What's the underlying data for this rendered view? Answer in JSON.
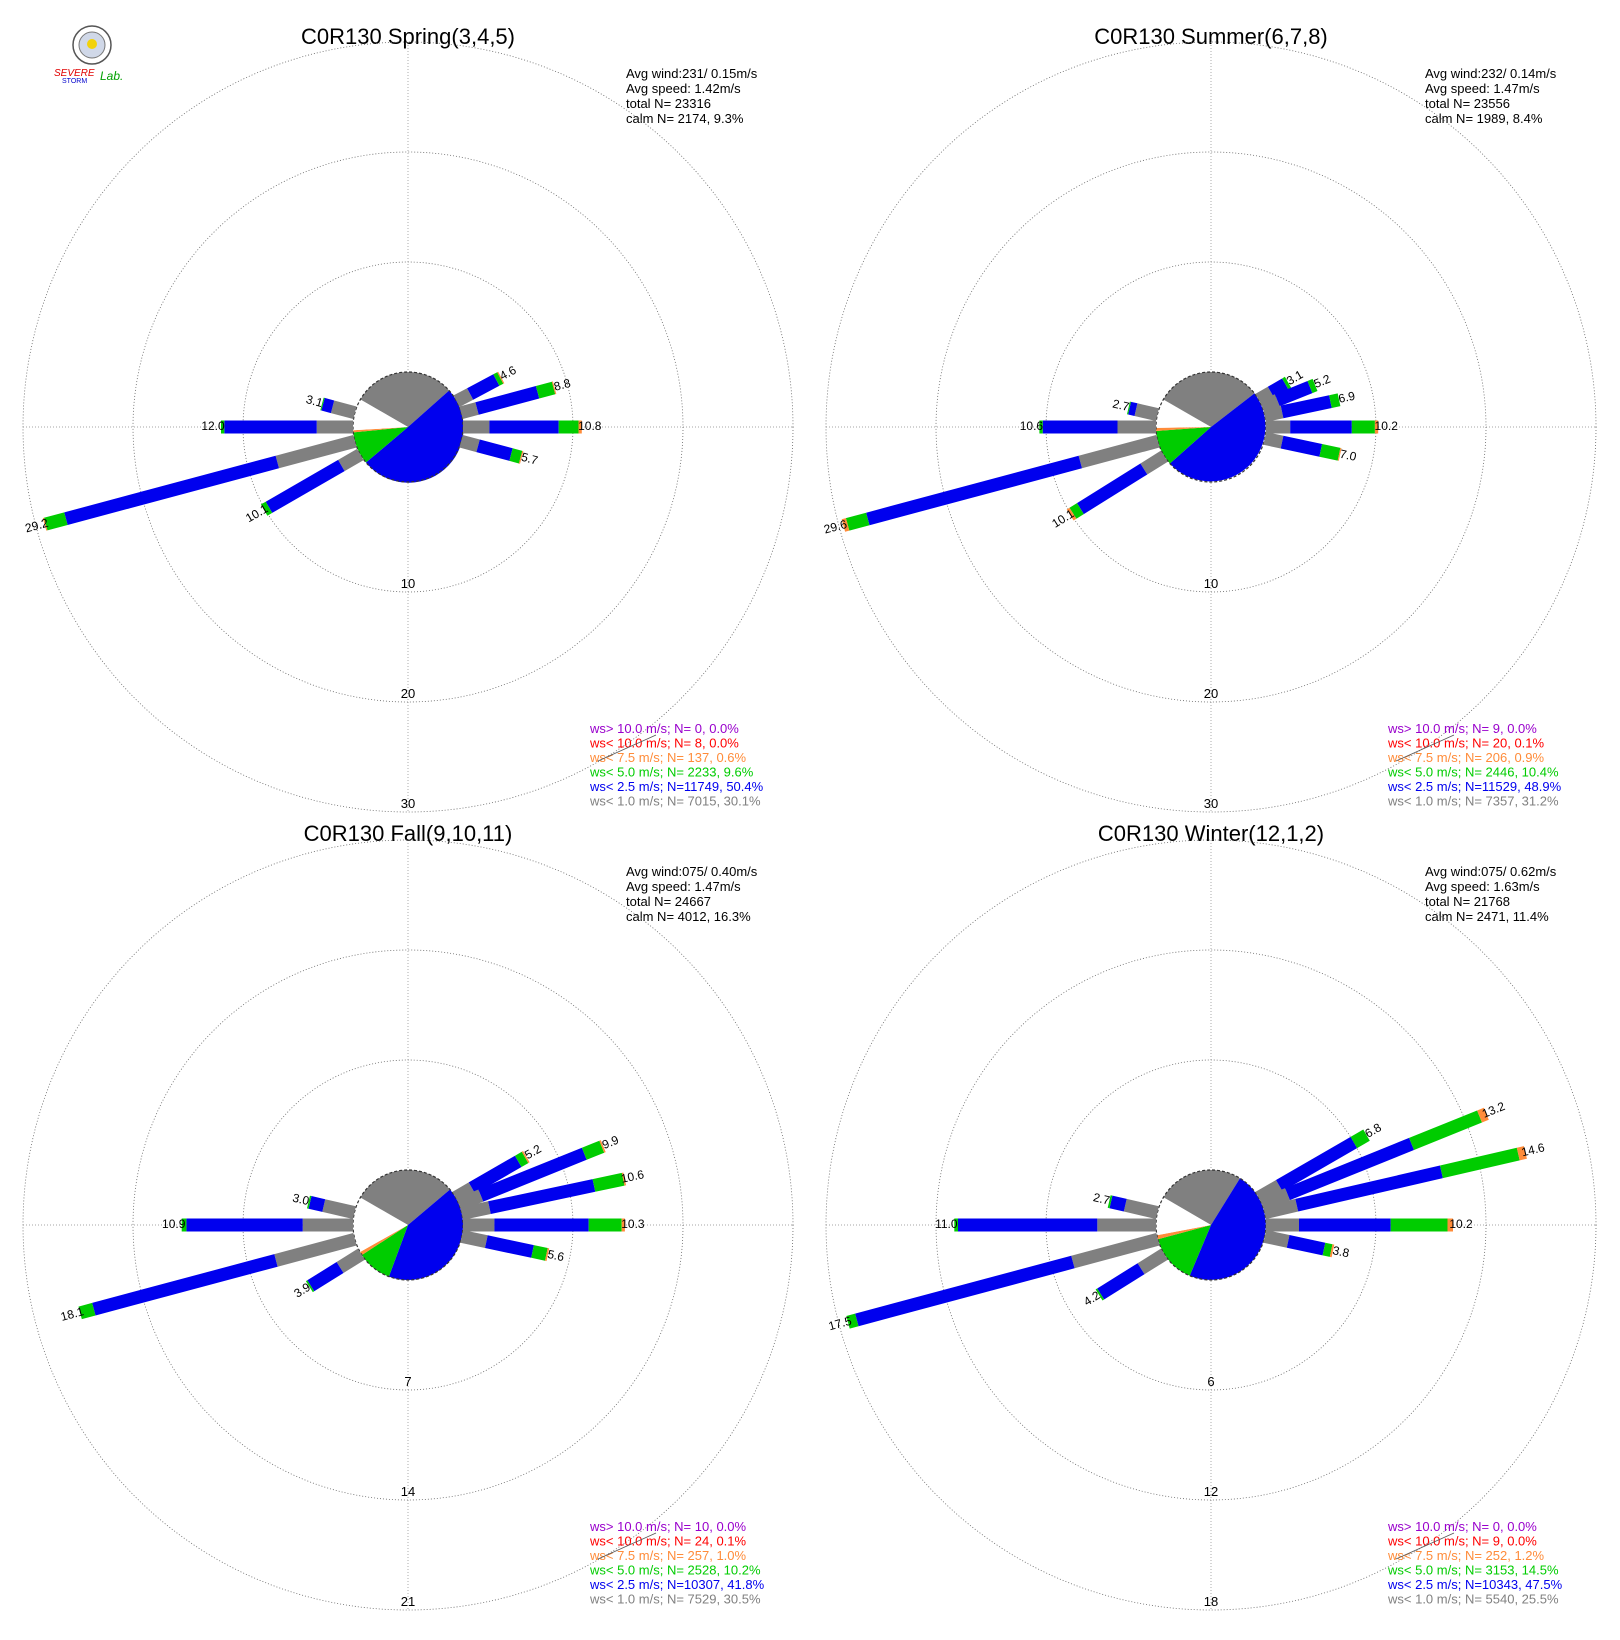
{
  "logo": {
    "text_a": "SEVERE",
    "text_b": "STORM",
    "text_c": "Lab."
  },
  "colors": {
    "gt10": "#9900cc",
    "lt10": "#ff0000",
    "lt75": "#ff8c3a",
    "lt5": "#00cc00",
    "lt25": "#0000ee",
    "lt1": "#808080",
    "grid": "#888888"
  },
  "legend_prefixes": [
    "ws> 10.0 m/s; N=",
    "ws< 10.0 m/s; N=",
    "ws<  7.5 m/s; N=",
    "ws<  5.0 m/s; N=",
    "ws<  2.5 m/s; N=",
    "ws<  1.0 m/s; N="
  ],
  "chart_data": [
    {
      "type": "windrose",
      "title": "C0R130 Spring(3,4,5)",
      "stats": [
        "Avg wind:231/ 0.15m/s",
        "Avg speed: 1.42m/s",
        "total N=       23316",
        "calm N=   2174,   9.3%"
      ],
      "rings": [
        10,
        20,
        30
      ],
      "ring_labels": [
        "10",
        "20",
        "30"
      ],
      "legend": [
        {
          "n": "0",
          "pct": "0.0%"
        },
        {
          "n": "8",
          "pct": "0.0%"
        },
        {
          "n": "137",
          "pct": "0.6%"
        },
        {
          "n": "2233",
          "pct": "9.6%"
        },
        {
          "n": "11749",
          "pct": "50.4%"
        },
        {
          "n": "7015",
          "pct": "30.1%"
        }
      ],
      "bars": [
        {
          "dir": 62,
          "lt1": 1.4,
          "lt25": 2.7,
          "lt5": 0.4,
          "lt75": 0.1,
          "label": "4.6"
        },
        {
          "dir": 75,
          "lt1": 1.5,
          "lt25": 5.7,
          "lt5": 1.5,
          "lt75": 0.1,
          "label": "8.8"
        },
        {
          "dir": 90,
          "lt1": 2.4,
          "lt25": 6.3,
          "lt5": 1.8,
          "lt75": 0.3,
          "label": "10.8"
        },
        {
          "dir": 105,
          "lt1": 1.6,
          "lt25": 3.1,
          "lt5": 0.9,
          "lt75": 0.1,
          "label": "5.7"
        },
        {
          "dir": 240,
          "lt1": 2.0,
          "lt25": 7.6,
          "lt5": 0.5,
          "lt75": 0.0,
          "label": "10.1"
        },
        {
          "dir": 255,
          "lt1": 7.3,
          "lt25": 19.9,
          "lt5": 1.9,
          "lt75": 0.1,
          "label": "29.2"
        },
        {
          "dir": 270,
          "lt1": 3.3,
          "lt25": 8.4,
          "lt5": 0.3,
          "lt75": 0.0,
          "label": "12.0"
        },
        {
          "dir": 285,
          "lt1": 2.1,
          "lt25": 0.9,
          "lt5": 0.1,
          "lt75": 0.0,
          "label": "3.1"
        }
      ],
      "pie": [
        {
          "key": "lt1",
          "pct": 30.1
        },
        {
          "key": "lt25",
          "pct": 50.4
        },
        {
          "key": "lt5",
          "pct": 9.6
        },
        {
          "key": "lt75",
          "pct": 0.6
        },
        {
          "key": "calm",
          "pct": 9.3
        }
      ]
    },
    {
      "type": "windrose",
      "title": "C0R130 Summer(6,7,8)",
      "stats": [
        "Avg wind:232/ 0.14m/s",
        "Avg speed: 1.47m/s",
        "total N=       23556",
        "calm N=   1989,   8.4%"
      ],
      "rings": [
        10,
        20,
        30
      ],
      "ring_labels": [
        "10",
        "20",
        "30"
      ],
      "legend": [
        {
          "n": "9",
          "pct": "0.0%"
        },
        {
          "n": "20",
          "pct": "0.1%"
        },
        {
          "n": "206",
          "pct": "0.9%"
        },
        {
          "n": "2446",
          "pct": "10.4%"
        },
        {
          "n": "11529",
          "pct": "48.9%"
        },
        {
          "n": "7357",
          "pct": "31.2%"
        }
      ],
      "bars": [
        {
          "dir": 60,
          "lt1": 1.3,
          "lt25": 1.5,
          "lt5": 0.3,
          "lt75": 0.0,
          "label": "3.1"
        },
        {
          "dir": 68,
          "lt1": 1.5,
          "lt25": 3.2,
          "lt5": 0.5,
          "lt75": 0.0,
          "label": "5.2"
        },
        {
          "dir": 78,
          "lt1": 1.6,
          "lt25": 4.5,
          "lt5": 0.8,
          "lt75": 0.0,
          "label": "6.9"
        },
        {
          "dir": 90,
          "lt1": 2.2,
          "lt25": 5.6,
          "lt5": 2.1,
          "lt75": 0.3,
          "label": "10.2"
        },
        {
          "dir": 102,
          "lt1": 1.6,
          "lt25": 3.6,
          "lt5": 1.7,
          "lt75": 0.1,
          "label": "7.0"
        },
        {
          "dir": 238,
          "lt1": 2.2,
          "lt25": 6.8,
          "lt5": 0.8,
          "lt75": 0.3,
          "label": "10.1"
        },
        {
          "dir": 255,
          "lt1": 7.3,
          "lt25": 20.0,
          "lt5": 1.9,
          "lt75": 0.4,
          "label": "29.6"
        },
        {
          "dir": 270,
          "lt1": 3.5,
          "lt25": 6.8,
          "lt5": 0.3,
          "lt75": 0.0,
          "label": "10.6"
        },
        {
          "dir": 283,
          "lt1": 2.0,
          "lt25": 0.6,
          "lt5": 0.1,
          "lt75": 0.0,
          "label": "2.7"
        }
      ],
      "pie": [
        {
          "key": "lt1",
          "pct": 31.2
        },
        {
          "key": "lt25",
          "pct": 48.9
        },
        {
          "key": "lt5",
          "pct": 10.4
        },
        {
          "key": "lt75",
          "pct": 0.9
        },
        {
          "key": "calm",
          "pct": 8.4
        }
      ]
    },
    {
      "type": "windrose",
      "title": "C0R130 Fall(9,10,11)",
      "stats": [
        "Avg wind:075/ 0.40m/s",
        "Avg speed: 1.47m/s",
        "total N=       24667",
        "calm N=   4012,  16.3%"
      ],
      "rings": [
        7,
        14,
        21
      ],
      "ring_labels": [
        "7",
        "14",
        "21"
      ],
      "legend": [
        {
          "n": "10",
          "pct": "0.0%"
        },
        {
          "n": "24",
          "pct": "0.1%"
        },
        {
          "n": "257",
          "pct": "1.0%"
        },
        {
          "n": "2528",
          "pct": "10.2%"
        },
        {
          "n": "10307",
          "pct": "41.8%"
        },
        {
          "n": "7529",
          "pct": "30.5%"
        }
      ],
      "bars": [
        {
          "dir": 60,
          "lt1": 1.2,
          "lt25": 3.4,
          "lt5": 0.5,
          "lt75": 0.1,
          "label": "5.2"
        },
        {
          "dir": 68,
          "lt1": 1.5,
          "lt25": 7.1,
          "lt5": 1.2,
          "lt75": 0.1,
          "label": "9.9"
        },
        {
          "dir": 78,
          "lt1": 1.8,
          "lt25": 6.8,
          "lt5": 1.9,
          "lt75": 0.1,
          "label": "10.6"
        },
        {
          "dir": 90,
          "lt1": 2.0,
          "lt25": 6.0,
          "lt5": 2.1,
          "lt75": 0.2,
          "label": "10.3"
        },
        {
          "dir": 102,
          "lt1": 1.6,
          "lt25": 3.0,
          "lt5": 0.9,
          "lt75": 0.1,
          "label": "5.6"
        },
        {
          "dir": 238,
          "lt1": 1.6,
          "lt25": 2.2,
          "lt5": 0.1,
          "lt75": 0.0,
          "label": "3.9"
        },
        {
          "dir": 255,
          "lt1": 5.2,
          "lt25": 12.0,
          "lt5": 0.9,
          "lt75": 0.0,
          "label": "18.1"
        },
        {
          "dir": 270,
          "lt1": 3.2,
          "lt25": 7.4,
          "lt5": 0.3,
          "lt75": 0.0,
          "label": "10.9"
        },
        {
          "dir": 283,
          "lt1": 2.0,
          "lt25": 0.9,
          "lt5": 0.1,
          "lt75": 0.0,
          "label": "3.0"
        }
      ],
      "pie": [
        {
          "key": "lt1",
          "pct": 30.5
        },
        {
          "key": "lt25",
          "pct": 41.8
        },
        {
          "key": "lt5",
          "pct": 10.2
        },
        {
          "key": "lt75",
          "pct": 1.0
        },
        {
          "key": "calm",
          "pct": 16.3
        }
      ]
    },
    {
      "type": "windrose",
      "title": "C0R130 Winter(12,1,2)",
      "stats": [
        "Avg wind:075/ 0.62m/s",
        "Avg speed: 1.63m/s",
        "total N=       21768",
        "calm N=   2471,  11.4%"
      ],
      "rings": [
        6,
        12,
        18
      ],
      "ring_labels": [
        "6",
        "12",
        "18"
      ],
      "legend": [
        {
          "n": "0",
          "pct": "0.0%"
        },
        {
          "n": "9",
          "pct": "0.0%"
        },
        {
          "n": "252",
          "pct": "1.2%"
        },
        {
          "n": "3153",
          "pct": "14.5%"
        },
        {
          "n": "10343",
          "pct": "47.5%"
        },
        {
          "n": "5540",
          "pct": "25.5%"
        }
      ],
      "bars": [
        {
          "dir": 60,
          "lt1": 1.3,
          "lt25": 4.7,
          "lt5": 0.8,
          "lt75": 0.0,
          "label": "6.8"
        },
        {
          "dir": 68,
          "lt1": 1.5,
          "lt25": 7.3,
          "lt5": 4.0,
          "lt75": 0.4,
          "label": "13.2"
        },
        {
          "dir": 77,
          "lt1": 1.8,
          "lt25": 8.1,
          "lt5": 4.3,
          "lt75": 0.4,
          "label": "14.6"
        },
        {
          "dir": 90,
          "lt1": 1.8,
          "lt25": 5.0,
          "lt5": 3.1,
          "lt75": 0.3,
          "label": "10.2"
        },
        {
          "dir": 102,
          "lt1": 1.3,
          "lt25": 2.0,
          "lt5": 0.4,
          "lt75": 0.1,
          "label": "3.8"
        },
        {
          "dir": 238,
          "lt1": 1.5,
          "lt25": 2.6,
          "lt5": 0.1,
          "lt75": 0.0,
          "label": "4.2"
        },
        {
          "dir": 255,
          "lt1": 4.8,
          "lt25": 12.2,
          "lt5": 0.5,
          "lt75": 0.0,
          "label": "17.5"
        },
        {
          "dir": 270,
          "lt1": 3.2,
          "lt25": 7.6,
          "lt5": 0.2,
          "lt75": 0.0,
          "label": "11.0"
        },
        {
          "dir": 283,
          "lt1": 1.8,
          "lt25": 0.8,
          "lt5": 0.1,
          "lt75": 0.0,
          "label": "2.7"
        }
      ],
      "pie": [
        {
          "key": "lt1",
          "pct": 25.5
        },
        {
          "key": "lt25",
          "pct": 47.5
        },
        {
          "key": "lt5",
          "pct": 14.5
        },
        {
          "key": "lt75",
          "pct": 1.2
        },
        {
          "key": "calm",
          "pct": 11.4
        }
      ]
    }
  ]
}
